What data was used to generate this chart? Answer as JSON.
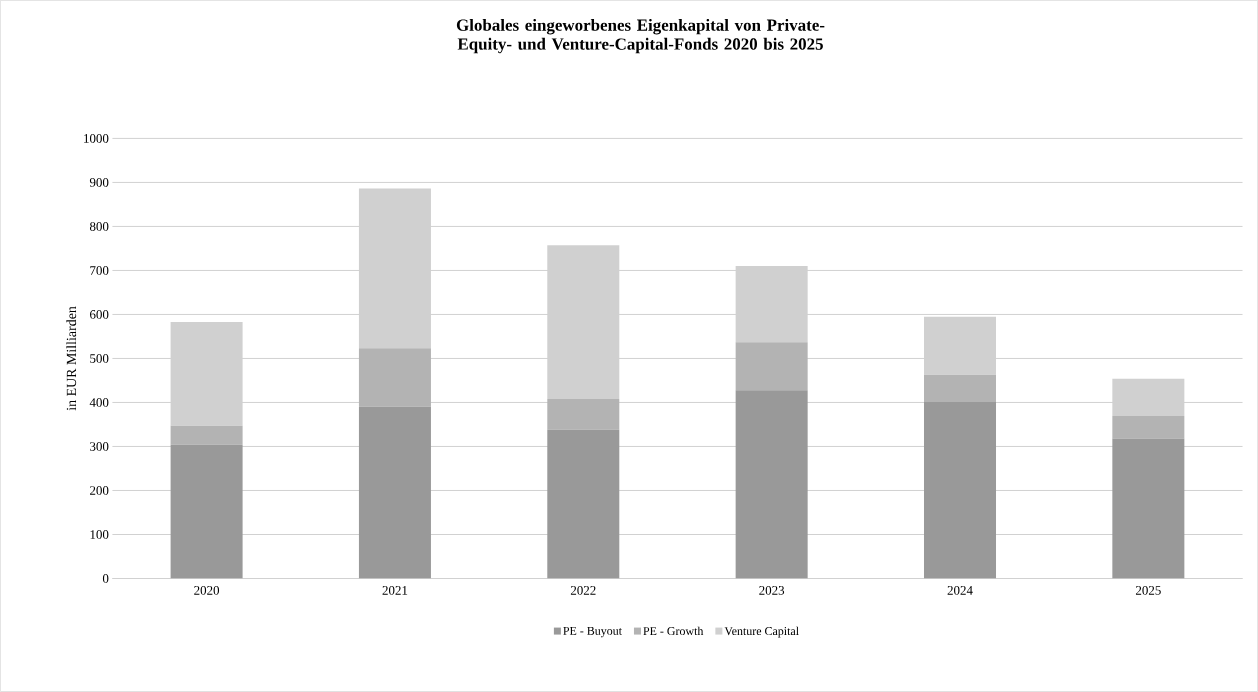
{
  "chart_data": {
    "type": "bar",
    "stacked": true,
    "title": "Globales eingeworbenes Eigenkapital von Private-Equity- und Venture-Capital-Fonds 2020 bis 2025",
    "ylabel": "in EUR Milliarden",
    "categories": [
      "2020",
      "2021",
      "2022",
      "2023",
      "2024",
      "2025"
    ],
    "series": [
      {
        "name": "PE - Buyout",
        "color": "#999999",
        "values": [
          304,
          390,
          338,
          428,
          401,
          318
        ]
      },
      {
        "name": "PE - Growth",
        "color": "#b3b3b3",
        "values": [
          43,
          133,
          70,
          109,
          62,
          51
        ]
      },
      {
        "name": "Venture Capital",
        "color": "#d0d0d0",
        "values": [
          236,
          363,
          349,
          173,
          132,
          85
        ]
      }
    ],
    "ylim": [
      0,
      1000
    ],
    "yticks": [
      0,
      100,
      200,
      300,
      400,
      500,
      600,
      700,
      800,
      900,
      1000
    ],
    "grid": "y",
    "legend": "bottom"
  }
}
